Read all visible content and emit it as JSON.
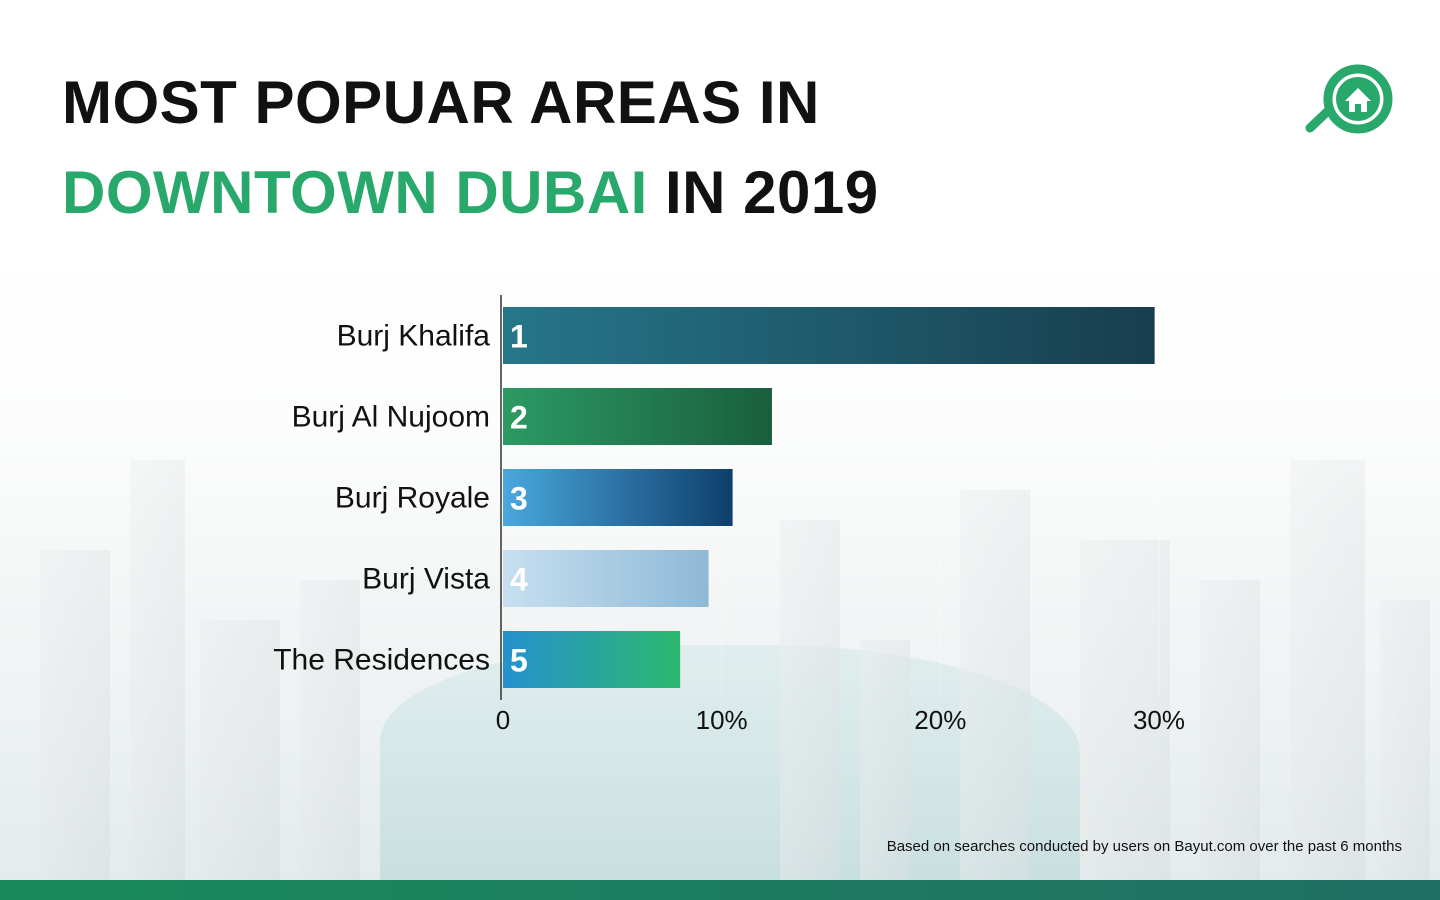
{
  "title": {
    "line1": "MOST POPUAR AREAS IN",
    "line2_highlight": "DOWNTOWN DUBAI",
    "line2_rest": " IN 2019"
  },
  "logo": {
    "icon": "house-magnifier-icon"
  },
  "footnote": "Based on searches conducted by users on Bayut.com over the past 6 months",
  "colors": {
    "title_green": "#28a86b",
    "bottom_bar": "#1a8a5c"
  },
  "chart_data": {
    "type": "bar",
    "orientation": "horizontal",
    "categories": [
      "Burj Khalifa",
      "Burj Al Nujoom",
      "Burj Royale",
      "Burj Vista",
      "The Residences"
    ],
    "ranks": [
      "1",
      "2",
      "3",
      "4",
      "5"
    ],
    "values": [
      29.8,
      12.3,
      10.5,
      9.4,
      8.1
    ],
    "unit": "%",
    "xlim": [
      0,
      30
    ],
    "xticks": [
      "0",
      "10%",
      "20%",
      "30%"
    ],
    "xtick_values": [
      0,
      10,
      20,
      30
    ],
    "bar_gradients": [
      [
        "#26768a",
        "#173e4d"
      ],
      [
        "#2c9a63",
        "#1a5e3e"
      ],
      [
        "#4aa8de",
        "#0e3e6b"
      ],
      [
        "#c7dff0",
        "#8eb9d6"
      ],
      [
        "#2591cf",
        "#2cb86e"
      ]
    ]
  }
}
